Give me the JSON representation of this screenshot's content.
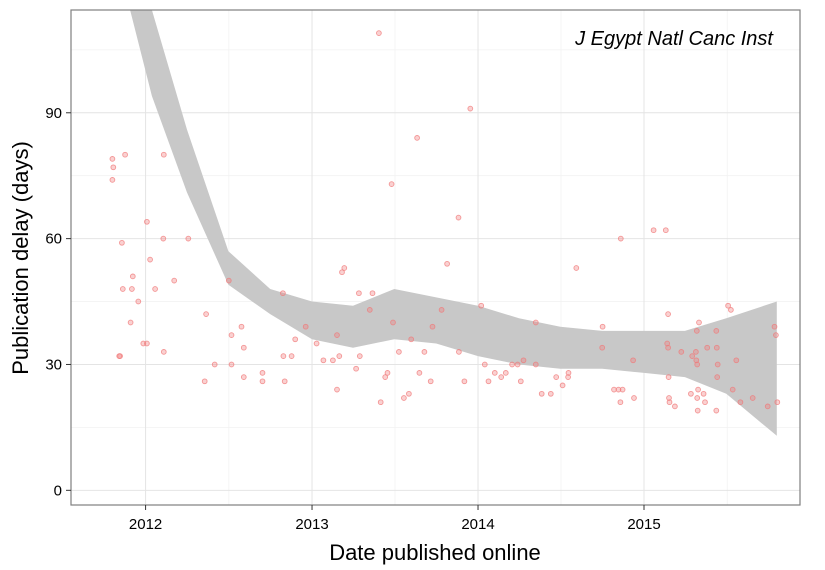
{
  "chart_data": {
    "type": "scatter",
    "title": "",
    "annotation": "J Egypt Natl Canc Inst",
    "xlabel": "Date published online",
    "ylabel": "Publication delay (days)",
    "xlim": [
      "2011-07-21",
      "2015-12-10"
    ],
    "ylim": [
      -3.5,
      114.5
    ],
    "x_ticks": [
      {
        "date": "2012-01-01",
        "label": "2012"
      },
      {
        "date": "2013-01-01",
        "label": "2013"
      },
      {
        "date": "2014-01-01",
        "label": "2014"
      },
      {
        "date": "2015-01-01",
        "label": "2015"
      }
    ],
    "y_ticks": [
      0,
      30,
      60,
      90
    ],
    "grid": true,
    "points_color": "#f07a7a",
    "band_color": "#c8c8c8",
    "points": [
      [
        "2011-10-20",
        79
      ],
      [
        "2011-10-22",
        77
      ],
      [
        "2011-10-20",
        74
      ],
      [
        "2011-11-04",
        32
      ],
      [
        "2011-11-06",
        32
      ],
      [
        "2011-11-10",
        59
      ],
      [
        "2011-11-12",
        48
      ],
      [
        "2011-11-17",
        80
      ],
      [
        "2011-11-29",
        40
      ],
      [
        "2011-12-04",
        51
      ],
      [
        "2011-12-02",
        48
      ],
      [
        "2011-12-16",
        45
      ],
      [
        "2011-12-27",
        35
      ],
      [
        "2012-01-04",
        35
      ],
      [
        "2012-01-04",
        64
      ],
      [
        "2012-01-11",
        55
      ],
      [
        "2012-01-22",
        48
      ],
      [
        "2012-02-10",
        80
      ],
      [
        "2012-02-09",
        60
      ],
      [
        "2012-02-10",
        33
      ],
      [
        "2012-03-04",
        50
      ],
      [
        "2012-04-04",
        60
      ],
      [
        "2012-05-10",
        26
      ],
      [
        "2012-05-13",
        42
      ],
      [
        "2012-06-01",
        30
      ],
      [
        "2012-07-02",
        50
      ],
      [
        "2012-07-08",
        37
      ],
      [
        "2012-07-08",
        30
      ],
      [
        "2012-07-30",
        39
      ],
      [
        "2012-08-04",
        34
      ],
      [
        "2012-08-04",
        27
      ],
      [
        "2012-09-14",
        28
      ],
      [
        "2012-09-14",
        26
      ],
      [
        "2012-10-29",
        47
      ],
      [
        "2012-10-30",
        32
      ],
      [
        "2012-11-02",
        26
      ],
      [
        "2012-11-17",
        32
      ],
      [
        "2012-11-25",
        36
      ],
      [
        "2012-12-18",
        39
      ],
      [
        "2013-01-11",
        35
      ],
      [
        "2013-01-26",
        31
      ],
      [
        "2013-02-16",
        31
      ],
      [
        "2013-02-25",
        24
      ],
      [
        "2013-02-25",
        37
      ],
      [
        "2013-03-02",
        32
      ],
      [
        "2013-03-08",
        52
      ],
      [
        "2013-03-13",
        53
      ],
      [
        "2013-04-08",
        29
      ],
      [
        "2013-04-14",
        47
      ],
      [
        "2013-04-16",
        32
      ],
      [
        "2013-05-08",
        43
      ],
      [
        "2013-05-14",
        47
      ],
      [
        "2013-05-28",
        109
      ],
      [
        "2013-06-01",
        21
      ],
      [
        "2013-06-11",
        27
      ],
      [
        "2013-06-16",
        28
      ],
      [
        "2013-06-25",
        73
      ],
      [
        "2013-06-28",
        40
      ],
      [
        "2013-07-11",
        33
      ],
      [
        "2013-07-22",
        22
      ],
      [
        "2013-08-02",
        23
      ],
      [
        "2013-08-07",
        36
      ],
      [
        "2013-08-20",
        84
      ],
      [
        "2013-08-25",
        28
      ],
      [
        "2013-09-05",
        33
      ],
      [
        "2013-09-19",
        26
      ],
      [
        "2013-09-23",
        39
      ],
      [
        "2013-10-13",
        43
      ],
      [
        "2013-10-25",
        54
      ],
      [
        "2013-11-19",
        65
      ],
      [
        "2013-11-20",
        33
      ],
      [
        "2013-12-02",
        26
      ],
      [
        "2013-12-15",
        91
      ],
      [
        "2014-01-08",
        44
      ],
      [
        "2014-01-16",
        30
      ],
      [
        "2014-01-24",
        26
      ],
      [
        "2014-02-07",
        28
      ],
      [
        "2014-02-21",
        27
      ],
      [
        "2014-03-03",
        28
      ],
      [
        "2014-03-17",
        30
      ],
      [
        "2014-03-29",
        30
      ],
      [
        "2014-04-05",
        26
      ],
      [
        "2014-04-11",
        31
      ],
      [
        "2014-05-08",
        30
      ],
      [
        "2014-05-08",
        40
      ],
      [
        "2014-05-21",
        23
      ],
      [
        "2014-06-10",
        23
      ],
      [
        "2014-06-22",
        27
      ],
      [
        "2014-07-06",
        25
      ],
      [
        "2014-07-18",
        27
      ],
      [
        "2014-07-19",
        28
      ],
      [
        "2014-08-05",
        53
      ],
      [
        "2014-10-01",
        34
      ],
      [
        "2014-10-02",
        39
      ],
      [
        "2014-10-27",
        24
      ],
      [
        "2014-11-06",
        24
      ],
      [
        "2014-11-10",
        21
      ],
      [
        "2014-11-11",
        60
      ],
      [
        "2014-11-15",
        24
      ],
      [
        "2014-12-08",
        31
      ],
      [
        "2014-12-10",
        22
      ],
      [
        "2015-01-22",
        62
      ],
      [
        "2015-02-18",
        62
      ],
      [
        "2015-02-21",
        35
      ],
      [
        "2015-02-23",
        34
      ],
      [
        "2015-02-23",
        42
      ],
      [
        "2015-02-24",
        27
      ],
      [
        "2015-02-25",
        22
      ],
      [
        "2015-02-26",
        21
      ],
      [
        "2015-03-10",
        20
      ],
      [
        "2015-03-24",
        33
      ],
      [
        "2015-04-14",
        23
      ],
      [
        "2015-04-17",
        32
      ],
      [
        "2015-04-25",
        33
      ],
      [
        "2015-04-26",
        31
      ],
      [
        "2015-04-27",
        38
      ],
      [
        "2015-04-28",
        30
      ],
      [
        "2015-05-02",
        40
      ],
      [
        "2015-04-30",
        24
      ],
      [
        "2015-04-28",
        22
      ],
      [
        "2015-04-29",
        19
      ],
      [
        "2015-05-12",
        23
      ],
      [
        "2015-05-15",
        21
      ],
      [
        "2015-05-20",
        34
      ],
      [
        "2015-06-09",
        19
      ],
      [
        "2015-06-09",
        38
      ],
      [
        "2015-06-10",
        34
      ],
      [
        "2015-06-11",
        27
      ],
      [
        "2015-06-12",
        30
      ],
      [
        "2015-07-05",
        44
      ],
      [
        "2015-07-11",
        43
      ],
      [
        "2015-07-15",
        24
      ],
      [
        "2015-07-23",
        31
      ],
      [
        "2015-08-01",
        21
      ],
      [
        "2015-08-28",
        22
      ],
      [
        "2015-09-30",
        20
      ],
      [
        "2015-10-15",
        39
      ],
      [
        "2015-10-18",
        37
      ],
      [
        "2015-10-21",
        21
      ]
    ],
    "smooth": {
      "x": [
        "2011-11-28",
        "2012-01-15",
        "2012-04-01",
        "2012-07-01",
        "2012-10-01",
        "2013-01-01",
        "2013-04-01",
        "2013-07-01",
        "2013-10-01",
        "2014-01-01",
        "2014-04-01",
        "2014-07-01",
        "2014-10-01",
        "2015-01-01",
        "2015-04-01",
        "2015-07-01",
        "2015-10-20"
      ],
      "lower": [
        114.5,
        94,
        71,
        49,
        42,
        36,
        34,
        36,
        35,
        32,
        30,
        29,
        29,
        28,
        27,
        23,
        13
      ],
      "upper": [
        114.5,
        114.5,
        86,
        57,
        48,
        45,
        44,
        48,
        46,
        44,
        41,
        39,
        38,
        38,
        38,
        41,
        45
      ]
    }
  }
}
